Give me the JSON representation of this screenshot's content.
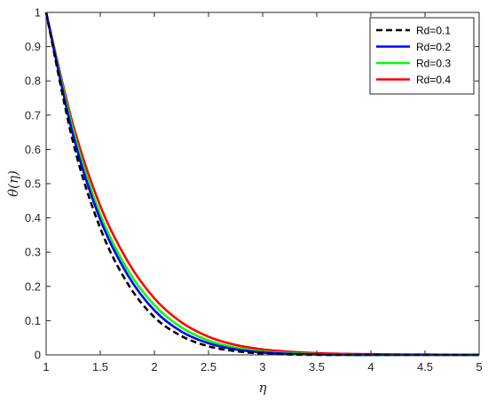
{
  "chart_data": {
    "type": "line",
    "xlabel": "η",
    "ylabel": "θ(η)",
    "xlim": [
      1,
      5
    ],
    "ylim": [
      0,
      1
    ],
    "xticks": [
      1,
      1.5,
      2,
      2.5,
      3,
      3.5,
      4,
      4.5,
      5
    ],
    "xtick_labels": [
      "1",
      "1.5",
      "2",
      "2.5",
      "3",
      "3.5",
      "4",
      "4.5",
      "5"
    ],
    "yticks": [
      0,
      0.1,
      0.2,
      0.3,
      0.4,
      0.5,
      0.6,
      0.7,
      0.8,
      0.9,
      1
    ],
    "ytick_labels": [
      "0",
      "0.1",
      "0.2",
      "0.3",
      "0.4",
      "0.5",
      "0.6",
      "0.7",
      "0.8",
      "0.9",
      "1"
    ],
    "grid": false,
    "legend_position": "top-right",
    "x": [
      1,
      1.25,
      1.5,
      1.75,
      2,
      2.25,
      2.5,
      2.75,
      3,
      3.25,
      3.5,
      3.75,
      4,
      4.25,
      4.5,
      4.75,
      5
    ],
    "series": [
      {
        "name": "Rd=0.1",
        "color": "#000000",
        "style": "dashed",
        "values": [
          1,
          0.62,
          0.37,
          0.21,
          0.11,
          0.055,
          0.025,
          0.011,
          0.004,
          0.001,
          0,
          0,
          0,
          0,
          0,
          0,
          0
        ]
      },
      {
        "name": "Rd=0.2",
        "color": "#0000ff",
        "style": "solid",
        "values": [
          1,
          0.64,
          0.395,
          0.235,
          0.13,
          0.068,
          0.034,
          0.016,
          0.007,
          0.003,
          0.001,
          0,
          0,
          0,
          0,
          0,
          0
        ]
      },
      {
        "name": "Rd=0.3",
        "color": "#00ff00",
        "style": "solid",
        "values": [
          1,
          0.655,
          0.41,
          0.25,
          0.145,
          0.08,
          0.042,
          0.021,
          0.01,
          0.005,
          0.002,
          0.001,
          0,
          0,
          0,
          0,
          0
        ]
      },
      {
        "name": "Rd=0.4",
        "color": "#ff0000",
        "style": "solid",
        "values": [
          1,
          0.67,
          0.435,
          0.275,
          0.165,
          0.095,
          0.053,
          0.029,
          0.016,
          0.009,
          0.005,
          0.003,
          0.002,
          0.001,
          0.001,
          0,
          0
        ]
      }
    ]
  }
}
